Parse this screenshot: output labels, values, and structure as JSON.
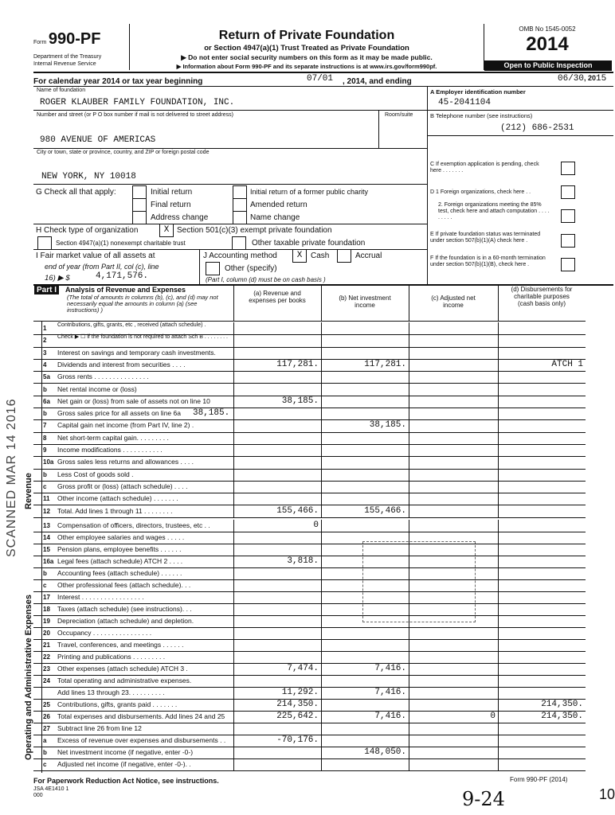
{
  "form": {
    "form_label": "Form",
    "number": "990-PF",
    "dept": "Department of the Treasury",
    "irs": "Internal Revenue Service",
    "title": "Return of Private Foundation",
    "subtitle": "or Section 4947(a)(1) Trust Treated as Private Foundation",
    "note1": "▶ Do not enter social security numbers on this form as it may be made public.",
    "note2": "▶ Information about Form 990-PF and its separate instructions is at www.irs.gov/form990pf.",
    "omb": "OMB No 1545-0052",
    "year": "2014",
    "open": "Open to Public Inspection"
  },
  "tax_year": {
    "label": "For calendar year 2014 or tax year beginning",
    "begin": "07/01",
    "mid": ", 2014, and ending",
    "end": "06/30",
    "end_sep": ", 20",
    "end_year": "15"
  },
  "foundation": {
    "name_label": "Name of foundation",
    "name": "ROGER KLAUBER FAMILY FOUNDATION, INC.",
    "street_label": "Number and street (or P O box number if mail is not delivered to street address)",
    "room_label": "Room/suite",
    "street": "980 AVENUE OF AMERICAS",
    "city_label": "City or town, state or province, country, and ZIP or foreign postal code",
    "city": "NEW YORK, NY 10018"
  },
  "right": {
    "a_label": "A  Employer identification number",
    "ein": "45-2041104",
    "b_label": "B  Telephone number (see instructions)",
    "phone": "(212) 686-2531",
    "c_label": "C  If exemption application is pending, check here . . . . . . .",
    "d1_label": "D  1 Foreign organizations, check here . .",
    "d2_label": "2. Foreign organizations meeting the 85% test, check here and attach computation . . . . . . . . .",
    "e_label": "E  If private foundation status was terminated under section 507(b)(1)(A) check here .",
    "f_label": "F  If the foundation is in a 60-month termination under section 507(b)(1)(B), check here ."
  },
  "g": {
    "label": "G Check all that apply:",
    "initial": "Initial return",
    "final": "Final return",
    "address": "Address change",
    "former": "Initial return of a former public charity",
    "amended": "Amended return",
    "name_change": "Name change"
  },
  "h": {
    "label": "H Check type of organization",
    "opt1": "Section 501(c)(3) exempt private foundation",
    "opt1_mark": "X",
    "opt2": "Section 4947(a)(1) nonexempt charitable trust",
    "opt3": "Other taxable private foundation"
  },
  "i": {
    "line1": "I  Fair market value of all assets at",
    "line2": "end of year (from Part II, col (c), line",
    "line3": "16) ▶ $",
    "value": "4,171,576."
  },
  "j": {
    "label": "J Accounting method",
    "cash": "Cash",
    "cash_mark": "X",
    "accrual": "Accrual",
    "other": "Other (specify)",
    "note": "(Part I, column (d) must be on cash basis )"
  },
  "part1": {
    "badge": "Part I",
    "title": "Analysis of Revenue and Expenses",
    "title_note": "(The total of amounts in columns (b), (c), and (d) may not necessarily equal the amounts in column (a) (see instructions) )",
    "col_a": "(a) Revenue and expenses per books",
    "col_b": "(b) Net investment income",
    "col_c": "(c) Adjusted net income",
    "col_d": "(d) Disbursements for charitable purposes (cash basis only)",
    "side_revenue": "Revenue",
    "side_expenses": "Operating and Administrative Expenses",
    "rows": [
      {
        "num": "1",
        "label": "Contributions, gifts, grants, etc , received (attach schedule) .",
        "a": "",
        "b": "",
        "c": "",
        "d": ""
      },
      {
        "num": "2",
        "label": "Check ▶ ☐ if the foundation is not required to attach Sch B . . . . . . . .",
        "a": "",
        "b": "",
        "c": "",
        "d": ""
      },
      {
        "num": "3",
        "label": "Interest on savings and temporary cash investments.",
        "a": "",
        "b": "",
        "c": "",
        "d": ""
      },
      {
        "num": "4",
        "label": "Dividends and interest from securities . . . .",
        "a": "117,281.",
        "b": "117,281.",
        "c": "",
        "d": "ATCH 1"
      },
      {
        "num": "5a",
        "label": "Gross rents . . . . . . . . . . . . . . .",
        "a": "",
        "b": "",
        "c": "",
        "d": ""
      },
      {
        "num": "b",
        "label": "Net rental income or (loss)",
        "a": "",
        "b": "",
        "c": "",
        "d": ""
      },
      {
        "num": "6a",
        "label": "Net gain or (loss) from sale of assets not on line 10",
        "a": "38,185.",
        "b": "",
        "c": "",
        "d": ""
      },
      {
        "num": "b",
        "label": "Gross sales price for all assets on line 6a",
        "inline": "38,185.",
        "a": "",
        "b": "",
        "c": "",
        "d": ""
      },
      {
        "num": "7",
        "label": "Capital gain net income (from Part IV, line 2) .",
        "a": "",
        "b": "38,185.",
        "c": "",
        "d": ""
      },
      {
        "num": "8",
        "label": "Net short-term capital gain. . . . . . . . .",
        "a": "",
        "b": "",
        "c": "",
        "d": ""
      },
      {
        "num": "9",
        "label": "Income modifications . . . . . . . . . . .",
        "a": "",
        "b": "",
        "c": "",
        "d": ""
      },
      {
        "num": "10a",
        "label": "Gross sales less returns and allowances . . . .",
        "a": "",
        "b": "",
        "c": "",
        "d": ""
      },
      {
        "num": "b",
        "label": "Less  Cost of goods sold .",
        "a": "",
        "b": "",
        "c": "",
        "d": ""
      },
      {
        "num": "c",
        "label": "Gross profit or (loss) (attach schedule) . . . .",
        "a": "",
        "b": "",
        "c": "",
        "d": ""
      },
      {
        "num": "11",
        "label": "Other income (attach schedule) . . . . . . .",
        "a": "",
        "b": "",
        "c": "",
        "d": ""
      },
      {
        "num": "12",
        "label": "Total. Add lines 1 through 11 . . . . . . . .",
        "a": "155,466.",
        "b": "155,466.",
        "c": "",
        "d": ""
      },
      {
        "num": "13",
        "label": "Compensation of officers, directors, trustees, etc . .",
        "a": "0",
        "b": "",
        "c": "",
        "d": ""
      },
      {
        "num": "14",
        "label": "Other employee salaries and wages . . . . .",
        "a": "",
        "b": "",
        "c": "",
        "d": ""
      },
      {
        "num": "15",
        "label": "Pension plans, employee benefits . . . . . .",
        "a": "",
        "b": "",
        "c": "",
        "d": ""
      },
      {
        "num": "16a",
        "label": "Legal fees (attach schedule) ATCH 2 . . . .",
        "a": "3,818.",
        "b": "",
        "c": "",
        "d": ""
      },
      {
        "num": "b",
        "label": "Accounting fees (attach schedule) . . . . . .",
        "a": "",
        "b": "",
        "c": "",
        "d": ""
      },
      {
        "num": "c",
        "label": "Other professional fees (attach schedule). . .",
        "a": "",
        "b": "",
        "c": "",
        "d": ""
      },
      {
        "num": "17",
        "label": "Interest . . . . . . . . . . . . . . . . .",
        "a": "",
        "b": "",
        "c": "",
        "d": ""
      },
      {
        "num": "18",
        "label": "Taxes (attach schedule) (see instructions). . .",
        "a": "",
        "b": "",
        "c": "",
        "d": ""
      },
      {
        "num": "19",
        "label": "Depreciation (attach schedule) and depletion.",
        "a": "",
        "b": "",
        "c": "",
        "d": ""
      },
      {
        "num": "20",
        "label": "Occupancy . . . . . . . . . . . . . . . .",
        "a": "",
        "b": "",
        "c": "",
        "d": ""
      },
      {
        "num": "21",
        "label": "Travel, conferences, and meetings . . . . . .",
        "a": "",
        "b": "",
        "c": "",
        "d": ""
      },
      {
        "num": "22",
        "label": "Printing and publications . . . . . . . . .",
        "a": "",
        "b": "",
        "c": "",
        "d": ""
      },
      {
        "num": "23",
        "label": "Other expenses (attach schedule) ATCH 3 .",
        "a": "7,474.",
        "b": "7,416.",
        "c": "",
        "d": ""
      },
      {
        "num": "24",
        "label": "Total operating and administrative expenses.",
        "a": "",
        "b": "",
        "c": "",
        "d": ""
      },
      {
        "num": "",
        "label": "Add lines 13 through 23. . . . . . . . . .",
        "a": "11,292.",
        "b": "7,416.",
        "c": "",
        "d": ""
      },
      {
        "num": "25",
        "label": "Contributions, gifts, grants paid . . . . . . .",
        "a": "214,350.",
        "b": "",
        "c": "",
        "d": "214,350."
      },
      {
        "num": "26",
        "label": "Total expenses and disbursements. Add lines 24 and 25",
        "a": "225,642.",
        "b": "7,416.",
        "c": "0",
        "d": "214,350."
      },
      {
        "num": "27",
        "label": "Subtract line 26 from line 12",
        "a": "",
        "b": "",
        "c": "",
        "d": ""
      },
      {
        "num": "a",
        "label": "Excess of revenue over expenses and disbursements . .",
        "a": "-70,176.",
        "b": "",
        "c": "",
        "d": ""
      },
      {
        "num": "b",
        "label": "Net investment income (if negative, enter -0-)",
        "a": "",
        "b": "148,050.",
        "c": "",
        "d": ""
      },
      {
        "num": "c",
        "label": "Adjusted net income (if negative, enter -0-). .",
        "a": "",
        "b": "",
        "c": "",
        "d": ""
      }
    ]
  },
  "footer": {
    "paperwork": "For Paperwork Reduction Act Notice, see instructions.",
    "code": "JSA 4E1410 1 000",
    "form_ref": "Form 990-PF (2014)",
    "handwritten": "9-24",
    "page_mark": "10"
  },
  "stamp": {
    "scanned": "SCANNED MAR 14 2016"
  }
}
